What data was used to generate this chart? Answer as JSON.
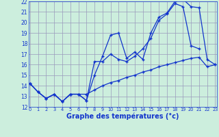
{
  "xlabel": "Graphe des températures (°c)",
  "background_color": "#cceedd",
  "grid_color": "#9999bb",
  "line_color": "#1133cc",
  "xmin": 0,
  "xmax": 23,
  "ymin": 12,
  "ymax": 22,
  "xticks": [
    0,
    1,
    2,
    3,
    4,
    5,
    6,
    7,
    8,
    9,
    10,
    11,
    12,
    13,
    14,
    15,
    16,
    17,
    18,
    19,
    20,
    21,
    22,
    23
  ],
  "yticks": [
    12,
    13,
    14,
    15,
    16,
    17,
    18,
    19,
    20,
    21,
    22
  ],
  "series1_x": [
    0,
    1,
    2,
    3,
    4,
    5,
    6,
    7,
    8,
    9,
    10,
    11,
    12,
    13,
    14,
    15,
    16,
    17,
    18,
    19,
    20,
    21,
    22,
    23
  ],
  "series1_y": [
    14.2,
    13.4,
    12.8,
    13.2,
    12.5,
    13.2,
    13.2,
    13.2,
    13.6,
    14.0,
    14.3,
    14.5,
    14.8,
    15.0,
    15.3,
    15.5,
    15.8,
    16.0,
    16.2,
    16.4,
    16.6,
    16.7,
    15.8,
    16.0
  ],
  "series2_x": [
    0,
    1,
    2,
    3,
    4,
    5,
    6,
    7,
    8,
    9,
    10,
    11,
    12,
    13,
    14,
    15,
    16,
    17,
    18,
    19,
    20,
    21
  ],
  "series2_y": [
    14.2,
    13.4,
    12.8,
    13.2,
    12.5,
    13.2,
    13.2,
    12.6,
    16.3,
    16.3,
    17.0,
    16.5,
    16.3,
    16.8,
    17.5,
    18.5,
    20.2,
    20.8,
    21.8,
    21.5,
    17.8,
    17.5
  ],
  "series3_x": [
    0,
    1,
    2,
    3,
    4,
    5,
    6,
    7,
    8,
    9,
    10,
    11,
    12,
    13,
    14,
    15,
    16,
    17,
    18,
    19,
    20,
    21,
    22,
    23
  ],
  "series3_y": [
    14.2,
    13.4,
    12.8,
    13.2,
    12.5,
    13.2,
    13.2,
    12.6,
    15.0,
    16.8,
    18.8,
    19.0,
    16.6,
    17.2,
    16.5,
    19.0,
    20.5,
    20.9,
    22.0,
    22.2,
    21.5,
    21.4,
    16.5,
    16.0
  ]
}
